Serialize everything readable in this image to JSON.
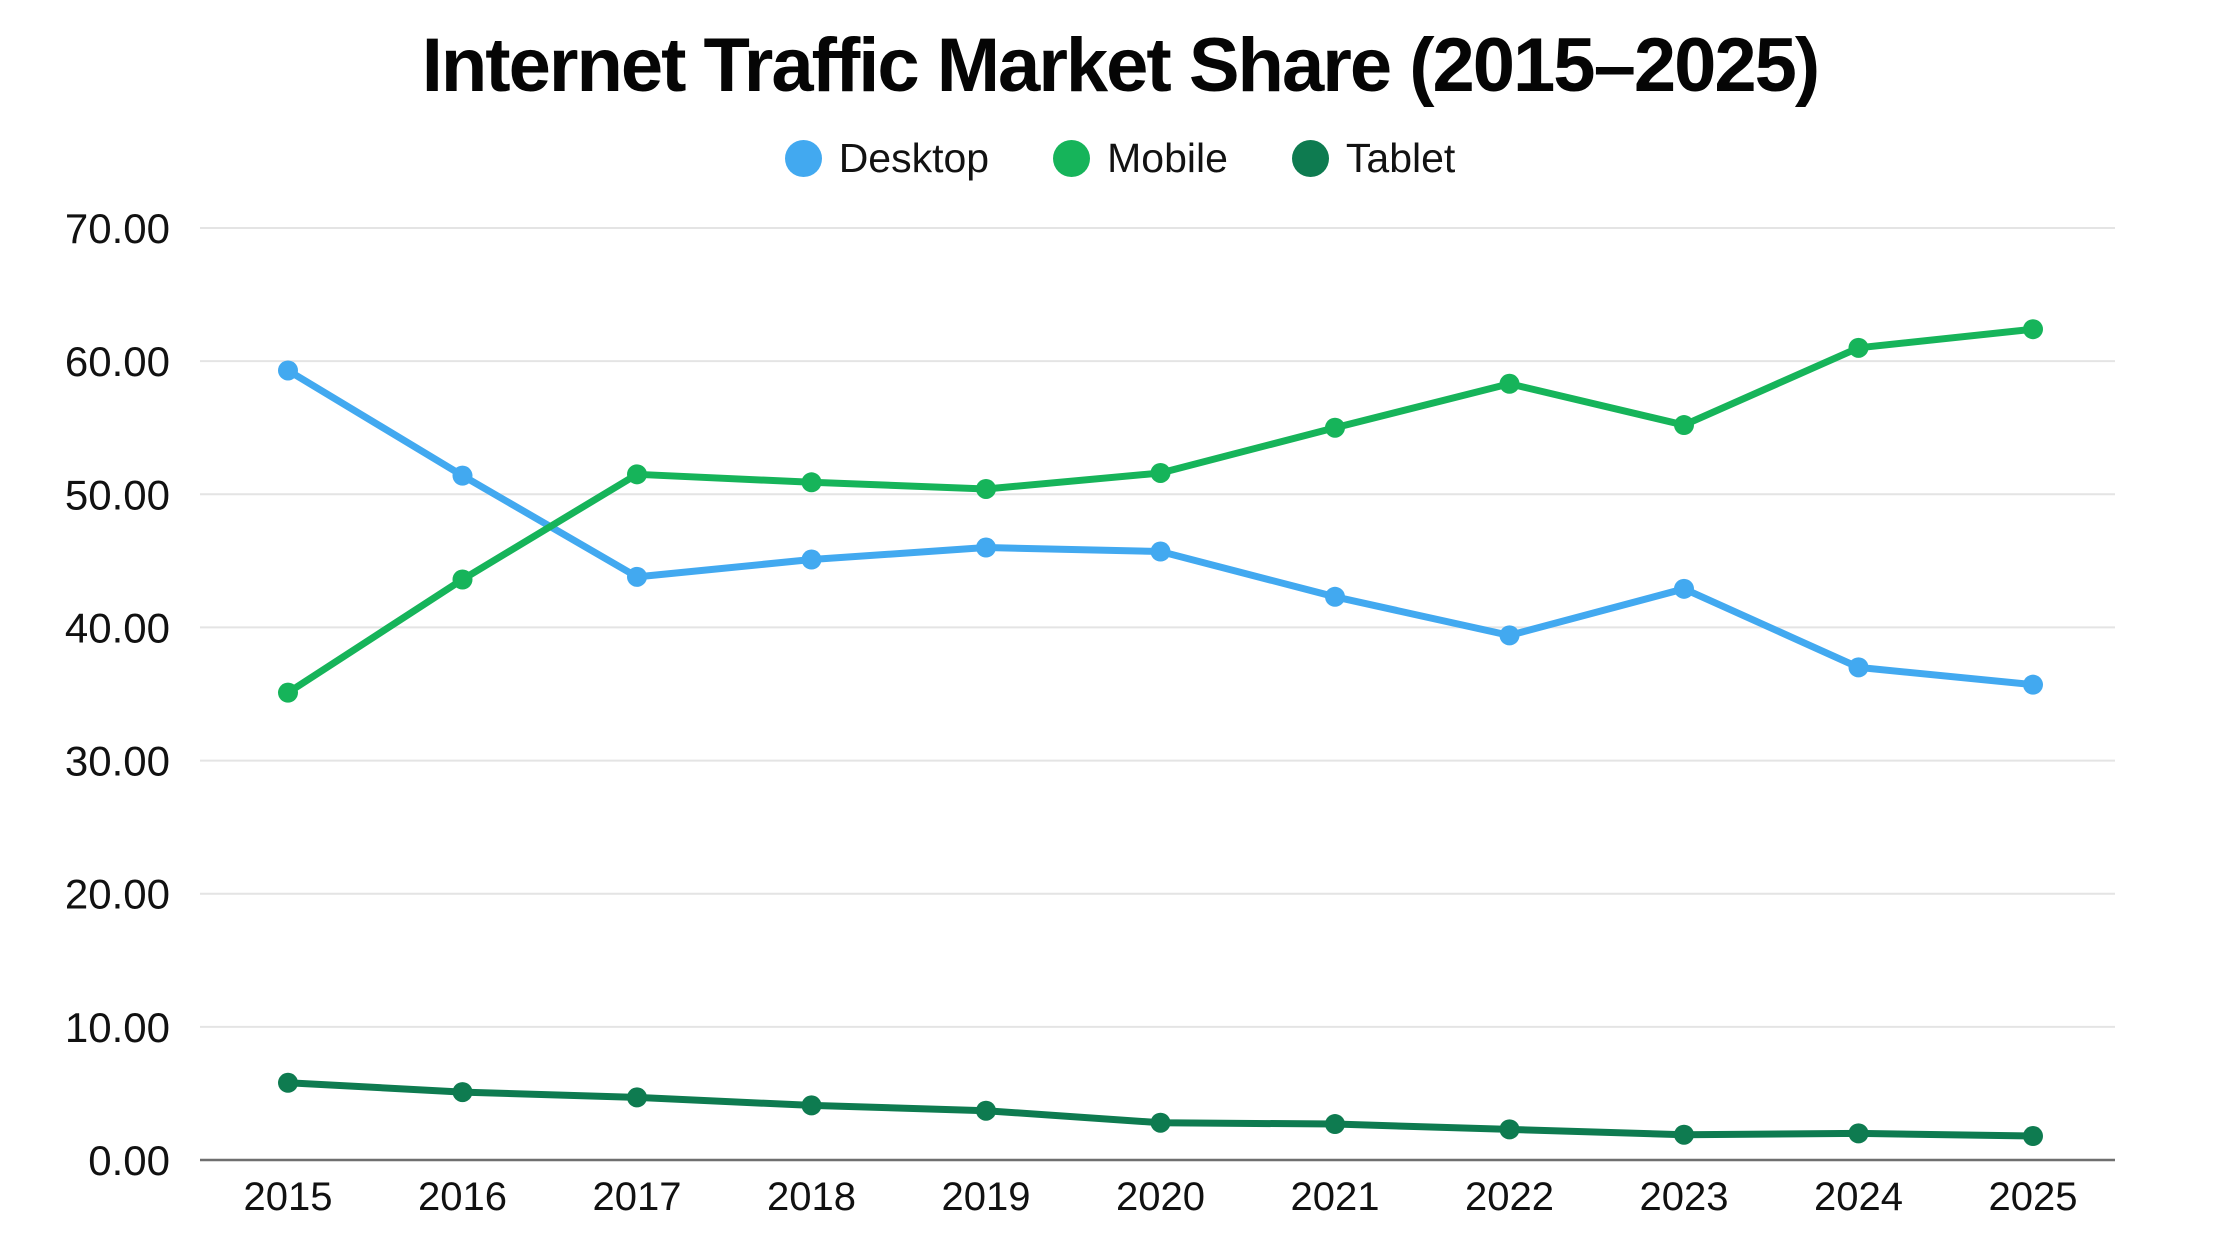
{
  "title": "Internet Traffic Market Share (2015–2025)",
  "chart_data": {
    "type": "line",
    "title": "Internet Traffic Market Share (2015–2025)",
    "xlabel": "",
    "ylabel": "",
    "x": [
      "2015",
      "2016",
      "2017",
      "2018",
      "2019",
      "2020",
      "2021",
      "2022",
      "2023",
      "2024",
      "2025"
    ],
    "series": [
      {
        "name": "Desktop",
        "color": "#42A9F0",
        "values": [
          59.3,
          51.4,
          43.8,
          45.1,
          46.0,
          45.7,
          42.3,
          39.4,
          42.9,
          37.0,
          35.7
        ]
      },
      {
        "name": "Mobile",
        "color": "#16B45A",
        "values": [
          35.1,
          43.6,
          51.5,
          50.9,
          50.4,
          51.6,
          55.0,
          58.3,
          55.2,
          61.0,
          62.4
        ]
      },
      {
        "name": "Tablet",
        "color": "#0E7B50",
        "values": [
          5.8,
          5.1,
          4.7,
          4.1,
          3.7,
          2.8,
          2.7,
          2.3,
          1.9,
          2.0,
          1.8
        ]
      }
    ],
    "ylim": [
      0,
      70
    ],
    "y_tick_step": 10,
    "y_ticks": [
      "0.00",
      "10.00",
      "20.00",
      "30.00",
      "40.00",
      "50.00",
      "60.00",
      "70.00"
    ],
    "grid": "horizontal",
    "legend_position": "top-center"
  },
  "colors": {
    "background": "#FFFFFF",
    "gridline": "#E4E4E4",
    "axis_line": "#6F6F6F",
    "tick_text": "#111111",
    "title_text": "#050505"
  }
}
